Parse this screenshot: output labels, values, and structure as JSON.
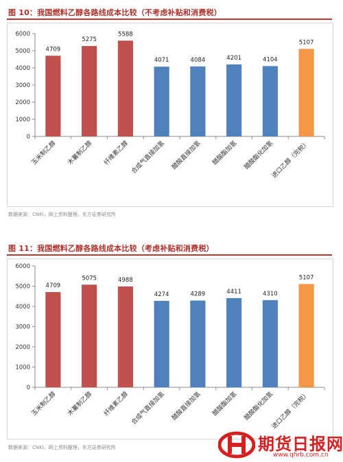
{
  "figures": [
    {
      "title": "图 10：我国燃料乙醇各路线成本比较（不考虑补贴和消费税）",
      "source": "数据来源：CNKI，网上资料整理，东方证券研究所"
    },
    {
      "title": "图 11：我国燃料乙醇各路线成本比较（考虑补贴和消费税）",
      "source": "数据来源：CNKI，网上资料整理，东方证券研究所"
    }
  ],
  "chart_data": [
    {
      "type": "bar",
      "title": "图 10：我国燃料乙醇各路线成本比较（不考虑补贴和消费税）",
      "categories": [
        "玉米制乙醇",
        "木薯制乙醇",
        "纤维素乙醇",
        "合成气直接加氢",
        "醋酸直接加氢",
        "醋酸酯加氢",
        "醋酸酯化加氢",
        "进口乙醇（完税）"
      ],
      "values": [
        4709,
        5275,
        5588,
        4071,
        4084,
        4201,
        4104,
        5107
      ],
      "bar_colors": [
        "#c0504d",
        "#c0504d",
        "#c0504d",
        "#4f81bd",
        "#4f81bd",
        "#4f81bd",
        "#4f81bd",
        "#f79646"
      ],
      "ylim": [
        0,
        6000
      ],
      "yticks": [
        0,
        1000,
        2000,
        3000,
        4000,
        5000,
        6000
      ],
      "grid": false,
      "data_labels": true
    },
    {
      "type": "bar",
      "title": "图 11：我国燃料乙醇各路线成本比较（考虑补贴和消费税）",
      "categories": [
        "玉米制乙醇",
        "木薯制乙醇",
        "纤维素乙醇",
        "合成气直接加氢",
        "醋酸直接加氢",
        "醋酸酯加氢",
        "醋酸酯化加氢",
        "进口乙醇（完税）"
      ],
      "values": [
        4709,
        5075,
        4988,
        4274,
        4289,
        4411,
        4310,
        5107
      ],
      "bar_colors": [
        "#c0504d",
        "#c0504d",
        "#c0504d",
        "#4f81bd",
        "#4f81bd",
        "#4f81bd",
        "#4f81bd",
        "#f79646"
      ],
      "ylim": [
        0,
        6000
      ],
      "yticks": [
        0,
        1000,
        2000,
        3000,
        4000,
        5000,
        6000
      ],
      "grid": false,
      "data_labels": true
    }
  ],
  "watermark": {
    "logo_name": "qhrb-logo",
    "text": "期货日报网",
    "url": "www.qhrb.com.cn",
    "color": "#d42020"
  }
}
